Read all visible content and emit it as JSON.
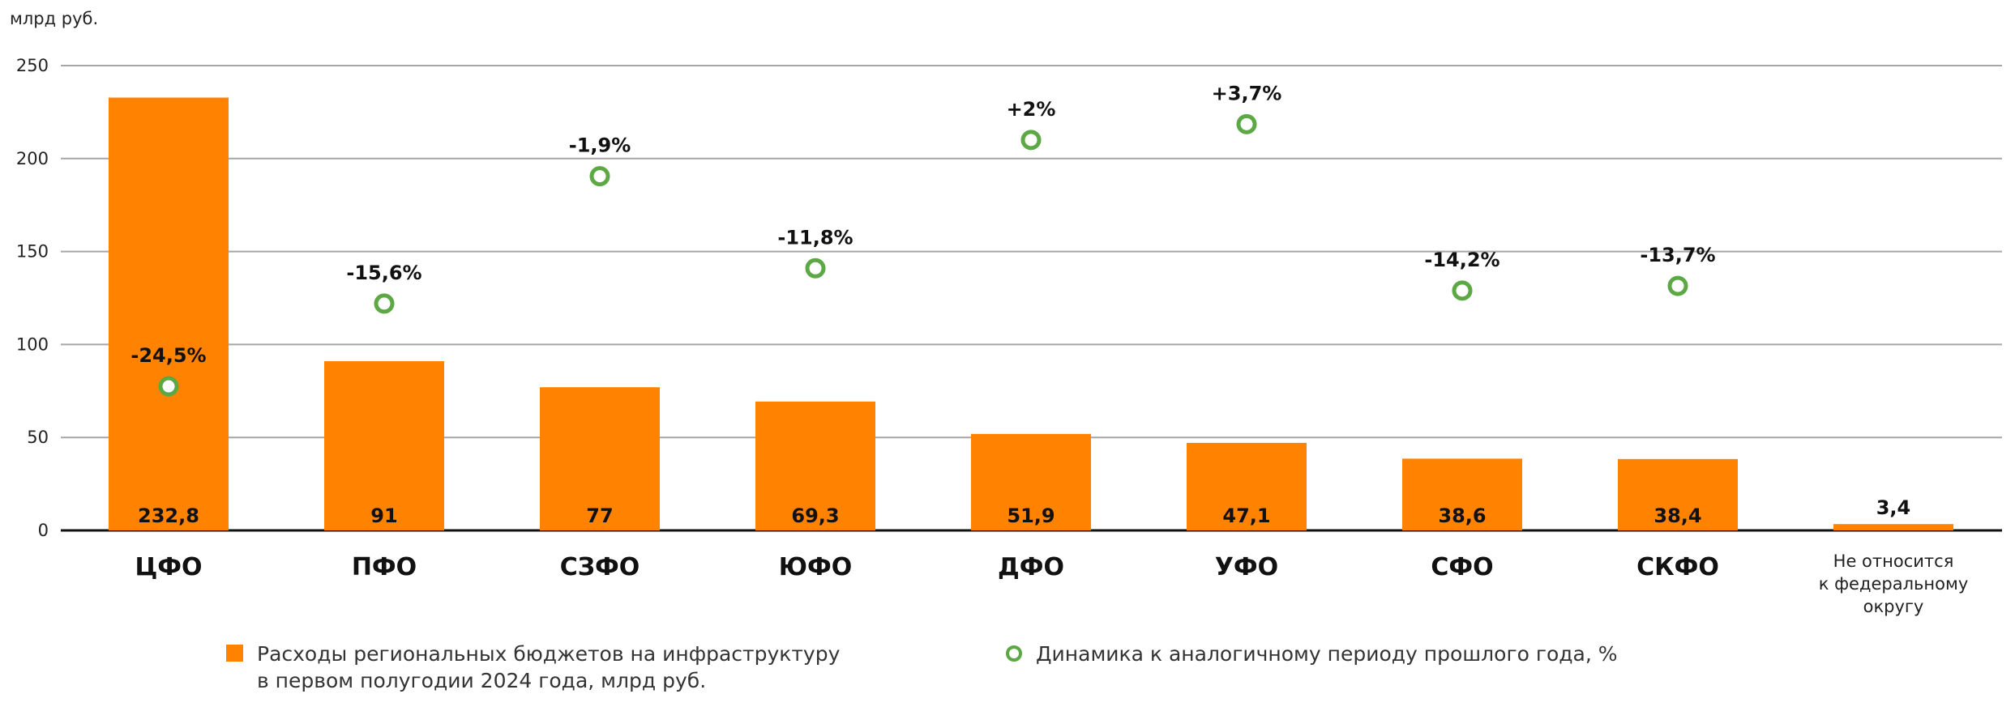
{
  "chart_data": {
    "type": "bar",
    "unit_label": "млрд руб.",
    "ylim": [
      0,
      250
    ],
    "yticks": [
      0,
      50,
      100,
      150,
      200,
      250
    ],
    "grid": true,
    "legend_position": "bottom",
    "categories": [
      "ЦФО",
      "ПФО",
      "СЗФО",
      "ЮФО",
      "ДФО",
      "УФО",
      "СФО",
      "СКФО",
      "Не относится к федеральному округу"
    ],
    "category_lines": [
      [
        "ЦФО"
      ],
      [
        "ПФО"
      ],
      [
        "СЗФО"
      ],
      [
        "ЮФО"
      ],
      [
        "ДФО"
      ],
      [
        "УФО"
      ],
      [
        "СФО"
      ],
      [
        "СКФО"
      ],
      [
        "Не относится",
        "к федеральному",
        "округу"
      ]
    ],
    "series": [
      {
        "name": "Расходы региональных бюджетов на инфраструктуру в первом полугодии 2024 года, млрд руб.",
        "name_lines": [
          "Расходы региональных бюджетов на инфраструктуру",
          "в первом полугодии 2024 года, млрд руб."
        ],
        "type": "bar",
        "color": "#FF8200",
        "values": [
          232.8,
          91,
          77,
          69.3,
          51.9,
          47.1,
          38.6,
          38.4,
          3.4
        ],
        "labels": [
          "232,8",
          "91",
          "77",
          "69,3",
          "51,9",
          "47,1",
          "38,6",
          "38,4",
          "3,4"
        ]
      },
      {
        "name": "Динамика к аналогичному периоду прошлого года, %",
        "type": "scatter",
        "marker": "ring",
        "color": "#5BA845",
        "values": [
          -24.5,
          -15.6,
          -1.9,
          -11.8,
          2,
          3.7,
          -14.2,
          -13.7,
          null
        ],
        "labels": [
          "-24,5%",
          "-15,6%",
          "-1,9%",
          "-11,8%",
          "+2%",
          "+3,7%",
          "-14,2%",
          "-13,7%",
          ""
        ]
      }
    ]
  }
}
